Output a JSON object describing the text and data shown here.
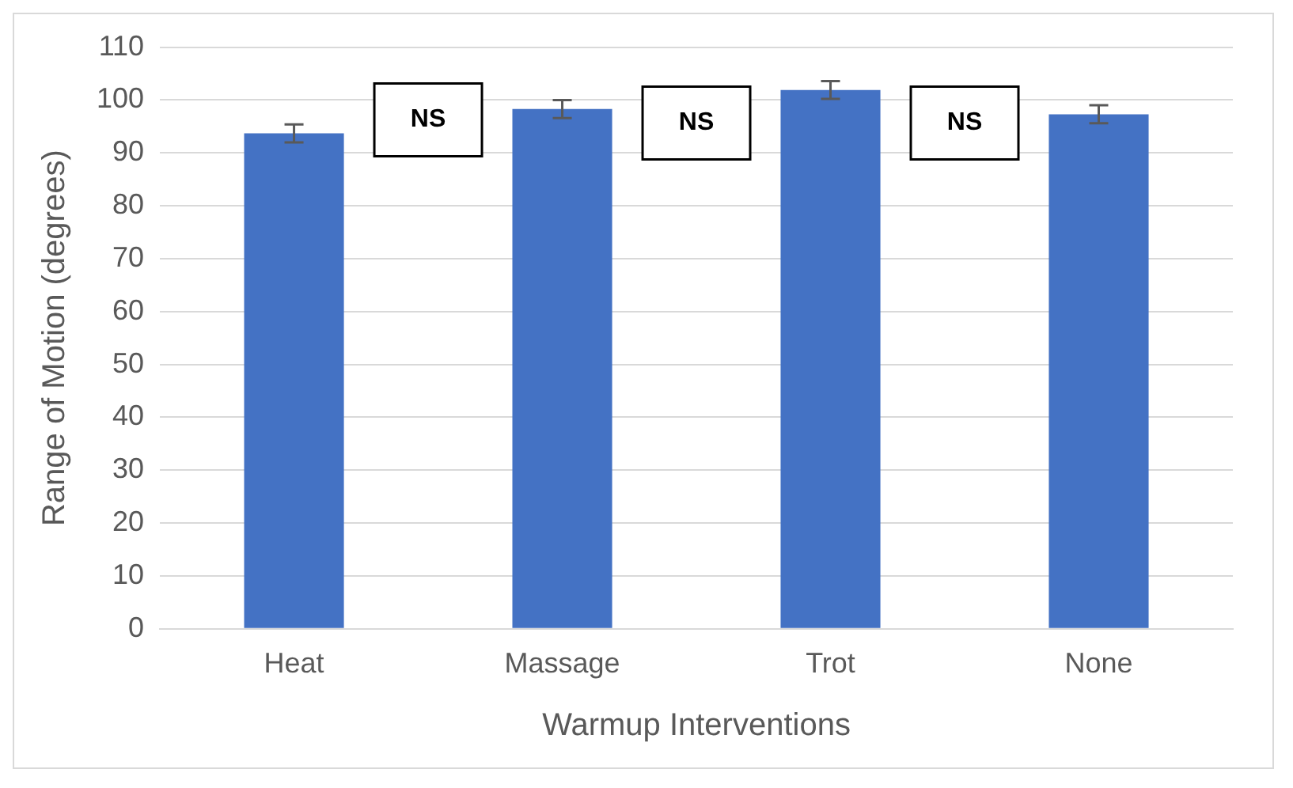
{
  "chart_data": {
    "type": "bar",
    "xlabel": "Warmup Interventions",
    "ylabel": "Range of Motion (degrees)",
    "categories": [
      "Heat",
      "Massage",
      "Trot",
      "None"
    ],
    "values": [
      93.7,
      98.3,
      101.9,
      97.3
    ],
    "errors": [
      1.7,
      1.7,
      1.7,
      1.7
    ],
    "color": "#4472c4",
    "ylim": [
      0,
      110
    ],
    "yticks": [
      0,
      10,
      20,
      30,
      40,
      50,
      60,
      70,
      80,
      90,
      100,
      110
    ],
    "grid": "y",
    "annotations": [
      "NS",
      "NS",
      "NS"
    ]
  }
}
